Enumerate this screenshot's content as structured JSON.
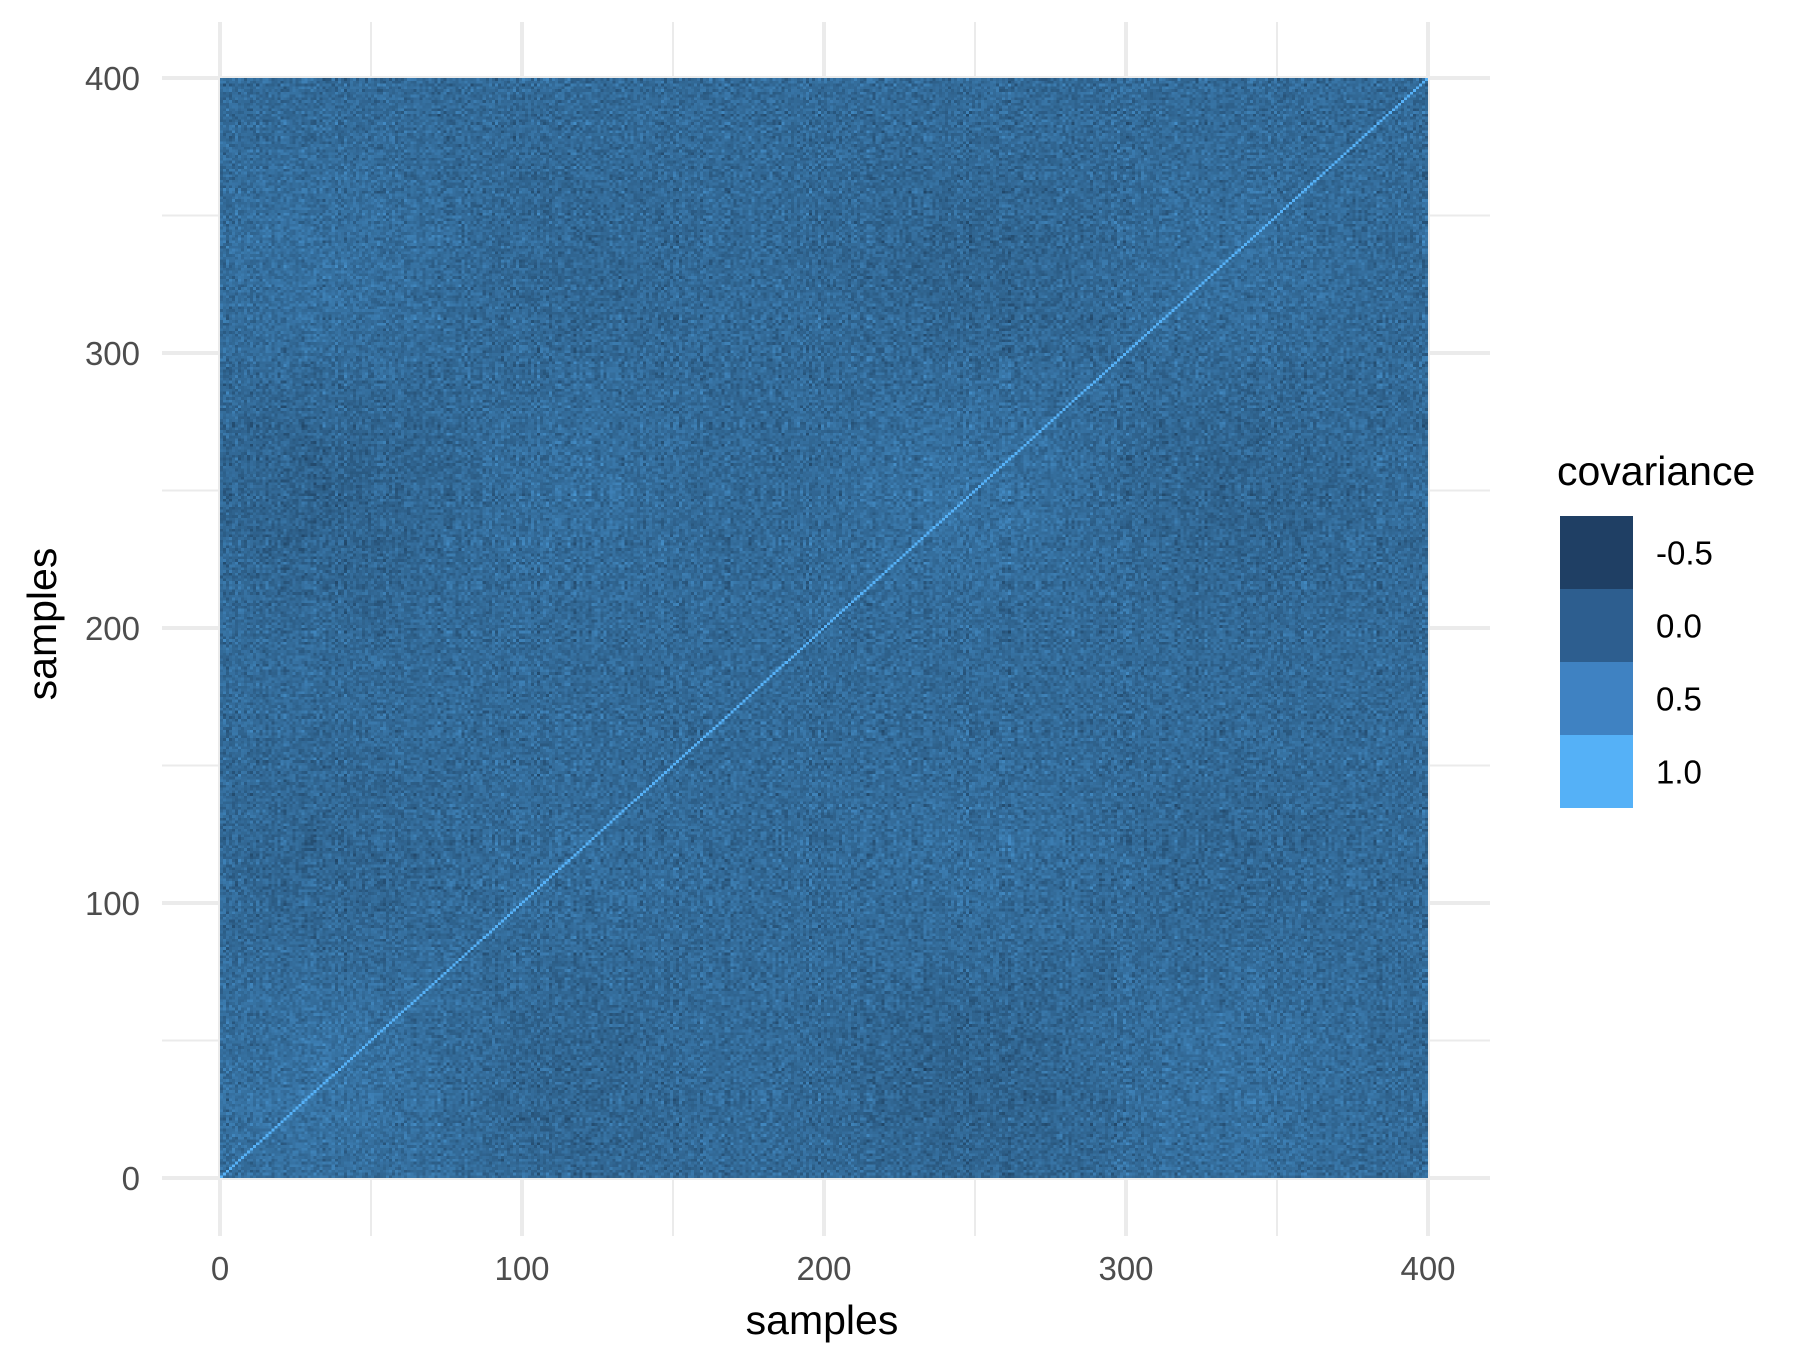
{
  "chart_data": {
    "type": "heatmap",
    "title": "",
    "xlabel": "samples",
    "ylabel": "samples",
    "xlim": [
      0,
      400
    ],
    "ylim": [
      0,
      400
    ],
    "x_ticks": [
      0,
      100,
      200,
      300,
      400
    ],
    "y_ticks": [
      0,
      100,
      200,
      300,
      400
    ],
    "x_tick_labels": [
      "0",
      "100",
      "200",
      "300",
      "400"
    ],
    "y_tick_labels": [
      "0",
      "100",
      "200",
      "300",
      "400"
    ],
    "grid": true,
    "n_samples": 400,
    "diagonal_value": 1.0,
    "value_range": [
      -0.8,
      1.0
    ],
    "legend": {
      "title": "covariance",
      "placement": "right",
      "entries": [
        {
          "label": "-0.5",
          "value": -0.5,
          "color": "#1F3F64"
        },
        {
          "label": "0.0",
          "value": 0.0,
          "color": "#2D5E8F"
        },
        {
          "label": "0.5",
          "value": 0.5,
          "color": "#3F82C2"
        },
        {
          "label": "1.0",
          "value": 1.0,
          "color": "#55B1F7"
        }
      ]
    },
    "colors": {
      "low": "#132B43",
      "high": "#56B1F7",
      "grid": "#EBEBEB",
      "tick_text": "#4D4D4D",
      "axis_title": "#000000"
    }
  }
}
